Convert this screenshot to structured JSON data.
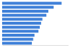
{
  "chart_data": {
    "type": "bar",
    "orientation": "horizontal",
    "categories": [
      null,
      null,
      null,
      null,
      null,
      null,
      null,
      null,
      null,
      null,
      null
    ],
    "values": [
      90,
      78,
      70,
      67,
      61,
      59,
      57,
      55,
      49,
      47,
      45
    ],
    "color": "#3f80d8",
    "xlim": [
      0,
      100
    ],
    "xticks": [],
    "grid": false,
    "tick_labels": false
  }
}
